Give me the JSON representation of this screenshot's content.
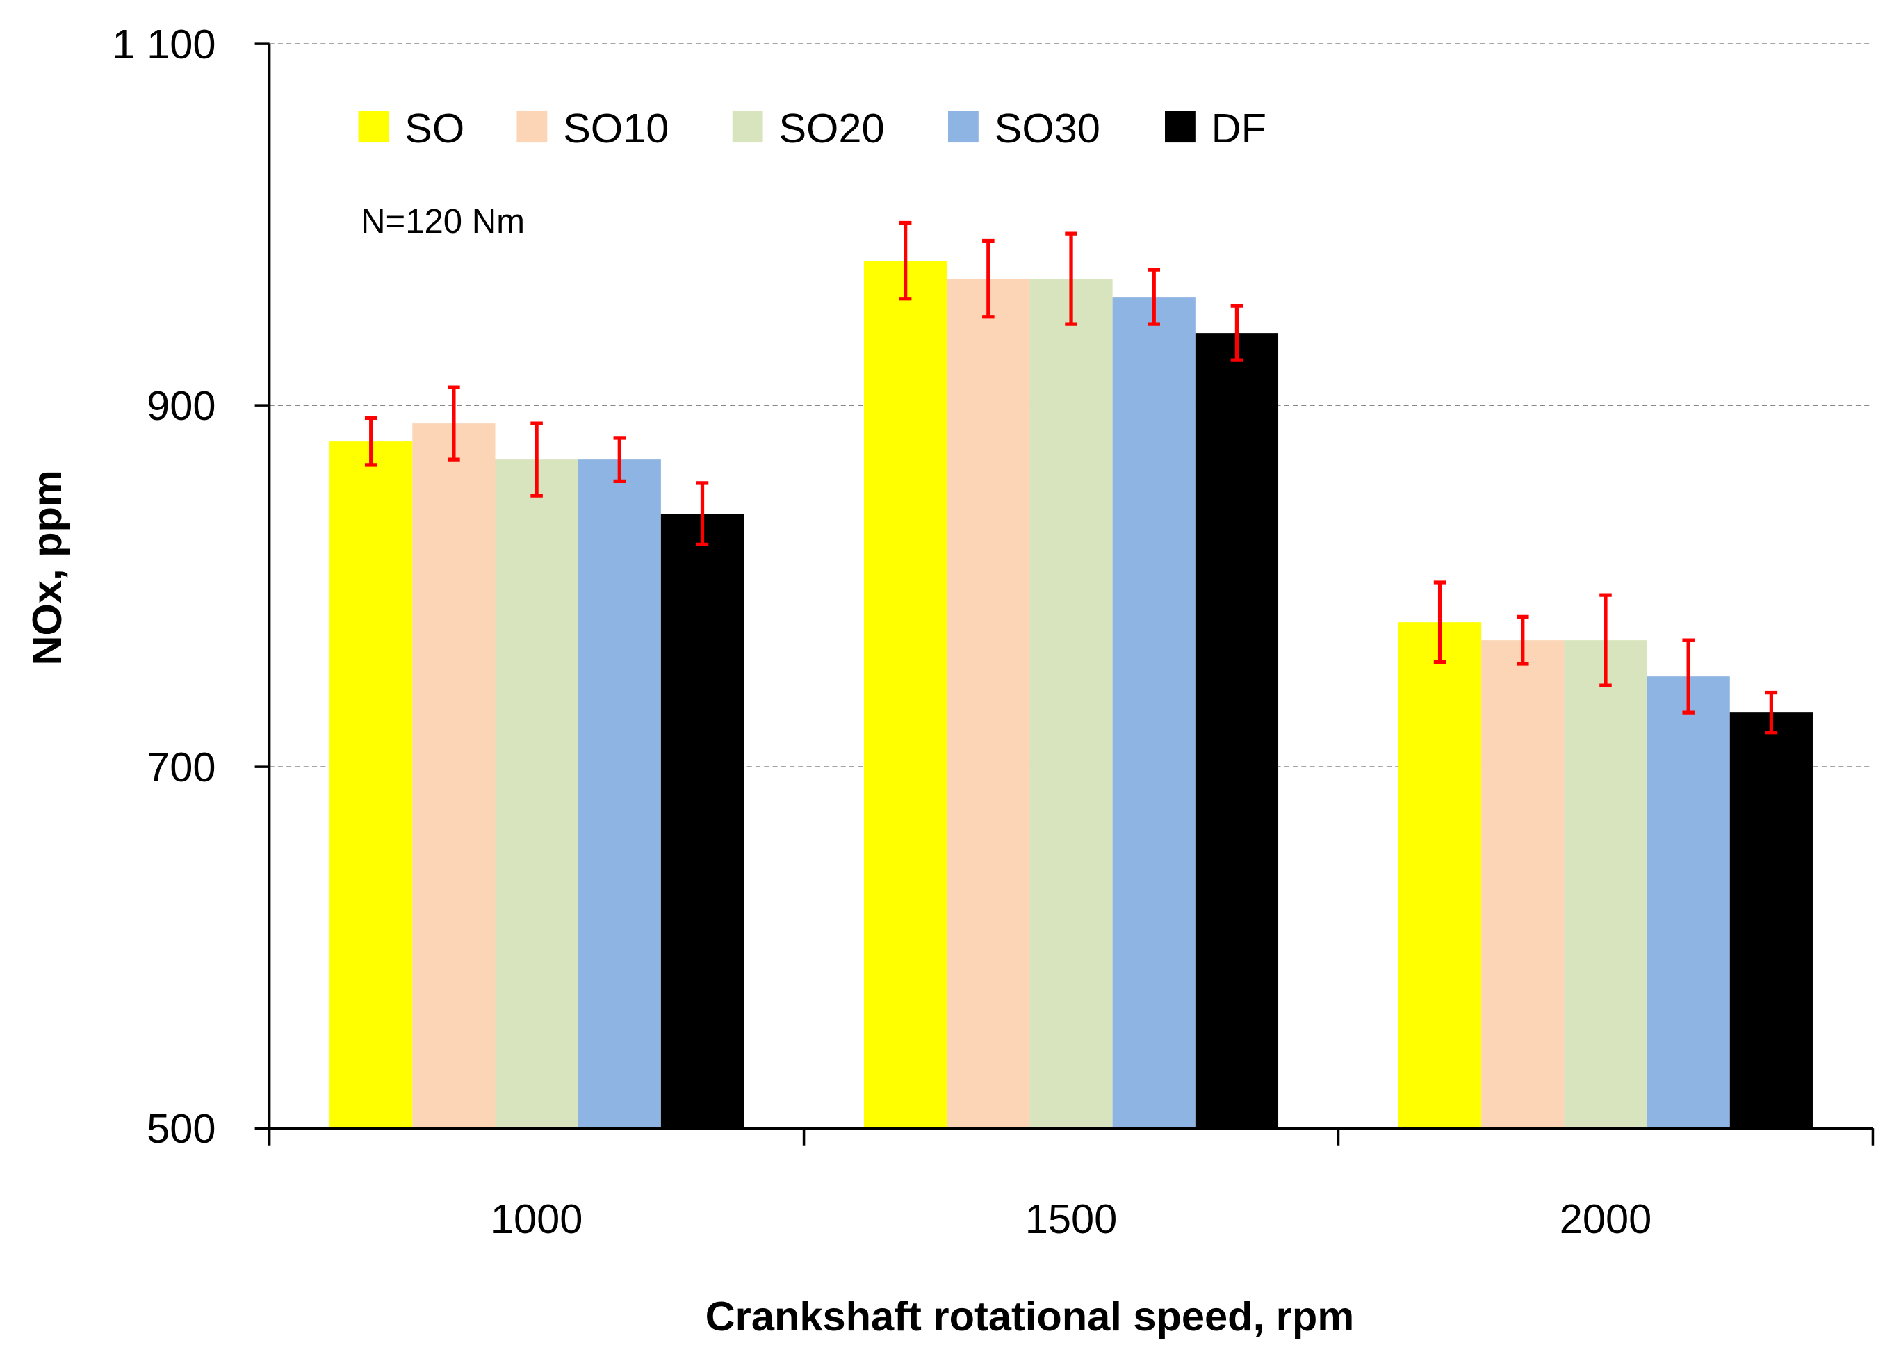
{
  "chart_data": {
    "type": "bar",
    "title": "",
    "annotation": "N=120 Nm",
    "xlabel": "Crankshaft rotational speed, rpm",
    "ylabel": "NOx, ppm",
    "ylim": [
      500,
      1100
    ],
    "yticks": [
      500,
      700,
      900,
      1100
    ],
    "ytick_labels": [
      "500",
      "700",
      "900",
      "1 100"
    ],
    "grid": "horizontal dashed",
    "legend_placement": "top-left, horizontal",
    "categories": [
      "1000",
      "1500",
      "2000"
    ],
    "error_bar_color": "#FF0000",
    "series": [
      {
        "name": "SO",
        "color": "#FFFF00",
        "values": [
          880,
          980,
          780
        ],
        "errors": [
          13,
          21,
          22
        ]
      },
      {
        "name": "SO10",
        "color": "#FBD5B5",
        "values": [
          890,
          970,
          770
        ],
        "errors": [
          20,
          21,
          13
        ]
      },
      {
        "name": "SO20",
        "color": "#D7E4BD",
        "values": [
          870,
          970,
          770
        ],
        "errors": [
          20,
          25,
          25
        ]
      },
      {
        "name": "SO30",
        "color": "#8EB4E3",
        "values": [
          870,
          960,
          750
        ],
        "errors": [
          12,
          15,
          20
        ]
      },
      {
        "name": "DF",
        "color": "#000000",
        "values": [
          840,
          940,
          730
        ],
        "errors": [
          17,
          15,
          11
        ]
      }
    ]
  }
}
